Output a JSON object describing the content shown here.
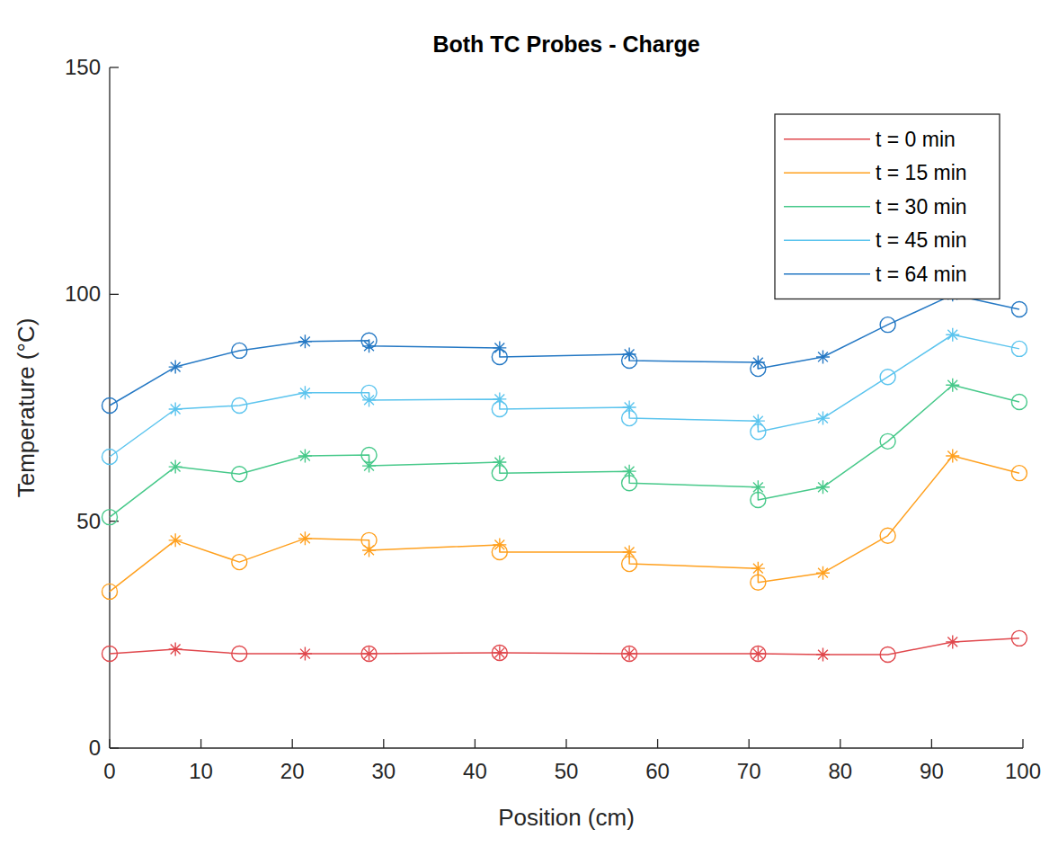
{
  "chart_data": {
    "type": "line",
    "title": "Both TC Probes - Charge",
    "x_label": "Position (cm)",
    "y_label": "Temperature (°C)",
    "xlim": [
      0,
      100
    ],
    "ylim": [
      0,
      150
    ],
    "xticks": [
      0,
      10,
      20,
      30,
      40,
      50,
      60,
      70,
      80,
      90,
      100
    ],
    "yticks": [
      0,
      50,
      100,
      150
    ],
    "grid": false,
    "legend": "upper-right",
    "series": [
      {
        "name": "t = 0 min",
        "color": "#e0474c",
        "line_style": "solid",
        "x": [
          0,
          7.2,
          14.2,
          21.4,
          28.4,
          28.4,
          42.7,
          42.7,
          56.9,
          56.9,
          71.0,
          71.0,
          78.1,
          85.2,
          92.3,
          99.6
        ],
        "values": [
          20.8,
          21.8,
          20.8,
          20.8,
          20.8,
          20.8,
          21.0,
          21.0,
          20.8,
          20.8,
          20.8,
          20.8,
          20.6,
          20.6,
          23.4,
          24.2
        ],
        "marker": [
          "circle",
          "asterisk",
          "circle",
          "asterisk",
          "circle",
          "asterisk",
          "asterisk",
          "circle",
          "asterisk",
          "circle",
          "asterisk",
          "circle",
          "asterisk",
          "circle",
          "asterisk",
          "circle"
        ]
      },
      {
        "name": "t = 15 min",
        "color": "#ffa01e",
        "line_style": "solid",
        "x": [
          0,
          7.2,
          14.2,
          21.4,
          28.4,
          28.4,
          42.7,
          42.7,
          56.9,
          56.9,
          71.0,
          71.0,
          78.1,
          85.2,
          92.3,
          99.6
        ],
        "values": [
          34.5,
          45.8,
          41.0,
          46.2,
          45.8,
          43.6,
          44.8,
          43.2,
          43.2,
          40.6,
          39.6,
          36.5,
          38.6,
          46.8,
          64.4,
          60.6
        ],
        "marker": [
          "circle",
          "asterisk",
          "circle",
          "asterisk",
          "circle",
          "asterisk",
          "asterisk",
          "circle",
          "asterisk",
          "circle",
          "asterisk",
          "circle",
          "asterisk",
          "circle",
          "asterisk",
          "circle"
        ]
      },
      {
        "name": "t = 30 min",
        "color": "#47c98a",
        "line_style": "solid",
        "x": [
          0,
          7.2,
          14.2,
          21.4,
          28.4,
          28.4,
          42.7,
          42.7,
          56.9,
          56.9,
          71.0,
          71.0,
          78.1,
          85.2,
          92.3,
          99.6
        ],
        "values": [
          50.9,
          62.0,
          60.4,
          64.4,
          64.6,
          62.2,
          63.0,
          60.6,
          61.0,
          58.4,
          57.5,
          54.7,
          57.5,
          67.6,
          80.0,
          76.3
        ],
        "marker": [
          "circle",
          "asterisk",
          "circle",
          "asterisk",
          "circle",
          "asterisk",
          "asterisk",
          "circle",
          "asterisk",
          "circle",
          "asterisk",
          "circle",
          "asterisk",
          "circle",
          "asterisk",
          "circle"
        ]
      },
      {
        "name": "t = 45 min",
        "color": "#5bc4ee",
        "line_style": "solid",
        "x": [
          0,
          7.2,
          14.2,
          21.4,
          28.4,
          28.4,
          42.7,
          42.7,
          56.9,
          56.9,
          71.0,
          71.0,
          78.1,
          85.2,
          92.3,
          99.6
        ],
        "values": [
          64.2,
          74.7,
          75.5,
          78.3,
          78.3,
          76.7,
          76.9,
          74.7,
          75.1,
          72.7,
          72.1,
          69.7,
          72.7,
          81.8,
          91.1,
          88.0
        ],
        "marker": [
          "circle",
          "asterisk",
          "circle",
          "asterisk",
          "circle",
          "asterisk",
          "asterisk",
          "circle",
          "asterisk",
          "circle",
          "asterisk",
          "circle",
          "asterisk",
          "circle",
          "asterisk",
          "circle"
        ]
      },
      {
        "name": "t = 64 min",
        "color": "#2478c4",
        "line_style": "solid",
        "x": [
          0,
          7.2,
          14.2,
          21.4,
          28.4,
          28.4,
          42.7,
          42.7,
          56.9,
          56.9,
          71.0,
          71.0,
          78.1,
          85.2,
          92.3,
          99.6
        ],
        "values": [
          75.5,
          84.0,
          87.6,
          89.6,
          89.8,
          88.6,
          88.2,
          86.2,
          86.8,
          85.4,
          85.0,
          83.6,
          86.2,
          93.3,
          99.9,
          96.7
        ],
        "marker": [
          "circle",
          "asterisk",
          "circle",
          "asterisk",
          "circle",
          "asterisk",
          "asterisk",
          "circle",
          "asterisk",
          "circle",
          "asterisk",
          "circle",
          "asterisk",
          "circle",
          "asterisk",
          "circle"
        ]
      }
    ]
  }
}
